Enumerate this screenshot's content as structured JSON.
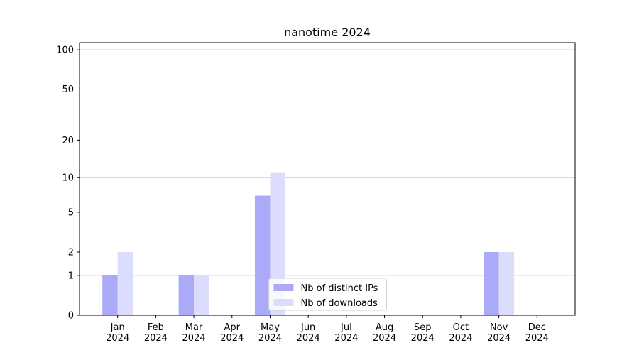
{
  "chart_data": {
    "type": "bar",
    "title": "nanotime 2024",
    "categories": [
      "Jan\n2024",
      "Feb\n2024",
      "Mar\n2024",
      "Apr\n2024",
      "May\n2024",
      "Jun\n2024",
      "Jul\n2024",
      "Aug\n2024",
      "Sep\n2024",
      "Oct\n2024",
      "Nov\n2024",
      "Dec\n2024"
    ],
    "series": [
      {
        "name": "Nb of distinct IPs",
        "color": "#aaaaf8",
        "values": [
          1,
          0,
          1,
          0,
          7,
          0,
          0,
          0,
          0,
          0,
          2,
          0
        ]
      },
      {
        "name": "Nb of downloads",
        "color": "#dcdcfc",
        "values": [
          2,
          0,
          1,
          0,
          11,
          0,
          0,
          0,
          0,
          0,
          2,
          0
        ]
      }
    ],
    "yscale": "log1p",
    "ylim": [
      0,
      113.5
    ],
    "yticks": [
      0,
      1,
      2,
      5,
      10,
      20,
      50,
      100
    ],
    "grid": true,
    "legend": "lower center"
  }
}
